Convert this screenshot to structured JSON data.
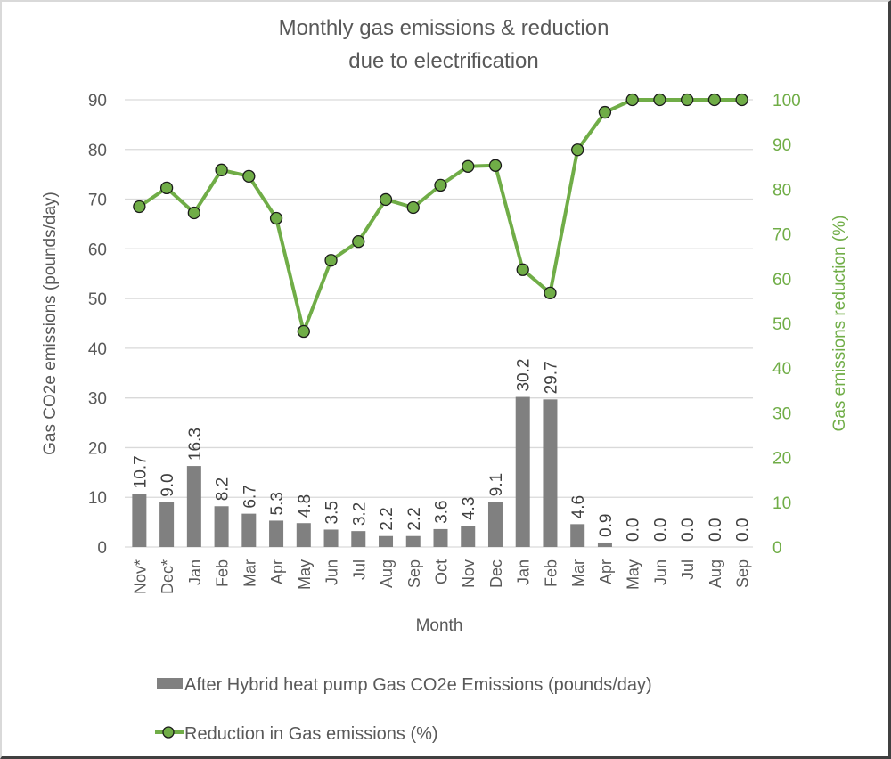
{
  "chart_data": {
    "type": "bar",
    "title": [
      "Monthly gas emissions & reduction",
      "due to electrification"
    ],
    "xlabel": "Month",
    "ylabel": "Gas CO2e emissions (pounds/day)",
    "y2label": "Gas emissions reduction (%)",
    "ylim": [
      0,
      90
    ],
    "y2lim": [
      0,
      100
    ],
    "yticks": [
      0,
      10,
      20,
      30,
      40,
      50,
      60,
      70,
      80,
      90
    ],
    "y2ticks": [
      0,
      10,
      20,
      30,
      40,
      50,
      60,
      70,
      80,
      90,
      100
    ],
    "grid": true,
    "legend_position": "bottom",
    "categories": [
      "Nov*",
      "Dec*",
      "Jan",
      "Feb",
      "Mar",
      "Apr",
      "May",
      "Jun",
      "Jul",
      "Aug",
      "Sep",
      "Oct",
      "Nov",
      "Dec",
      "Jan",
      "Feb",
      "Mar",
      "Apr",
      "May",
      "Jun",
      "Jul",
      "Aug",
      "Sep"
    ],
    "series": [
      {
        "name": "After Hybrid heat pump Gas CO2e Emissions (pounds/day)",
        "type": "bar",
        "axis": "left",
        "color": "#808080",
        "values": [
          10.7,
          9.0,
          16.3,
          8.2,
          6.7,
          5.3,
          4.8,
          3.5,
          3.2,
          2.2,
          2.2,
          3.6,
          4.3,
          9.1,
          30.2,
          29.7,
          4.6,
          0.9,
          0.0,
          0.0,
          0.0,
          0.0,
          0.0
        ],
        "labels": [
          "10.7",
          "9.0",
          "16.3",
          "8.2",
          "6.7",
          "5.3",
          "4.8",
          "3.5",
          "3.2",
          "2.2",
          "2.2",
          "3.6",
          "4.3",
          "9.1",
          "30.2",
          "29.7",
          "4.6",
          "0.9",
          "0.0",
          "0.0",
          "0.0",
          "0.0",
          "0.0"
        ]
      },
      {
        "name": "Reduction in Gas emissions (%)",
        "type": "line",
        "axis": "right",
        "color": "#70ad47",
        "marker_color": "#70ad47",
        "marker_edge": "#1a1a1a",
        "values": [
          76.1,
          80.3,
          74.7,
          84.3,
          82.9,
          73.5,
          48.2,
          64.1,
          68.3,
          77.7,
          75.9,
          80.9,
          85.1,
          85.3,
          62.0,
          56.8,
          88.8,
          97.2,
          100,
          100,
          100,
          100,
          100
        ]
      }
    ]
  }
}
